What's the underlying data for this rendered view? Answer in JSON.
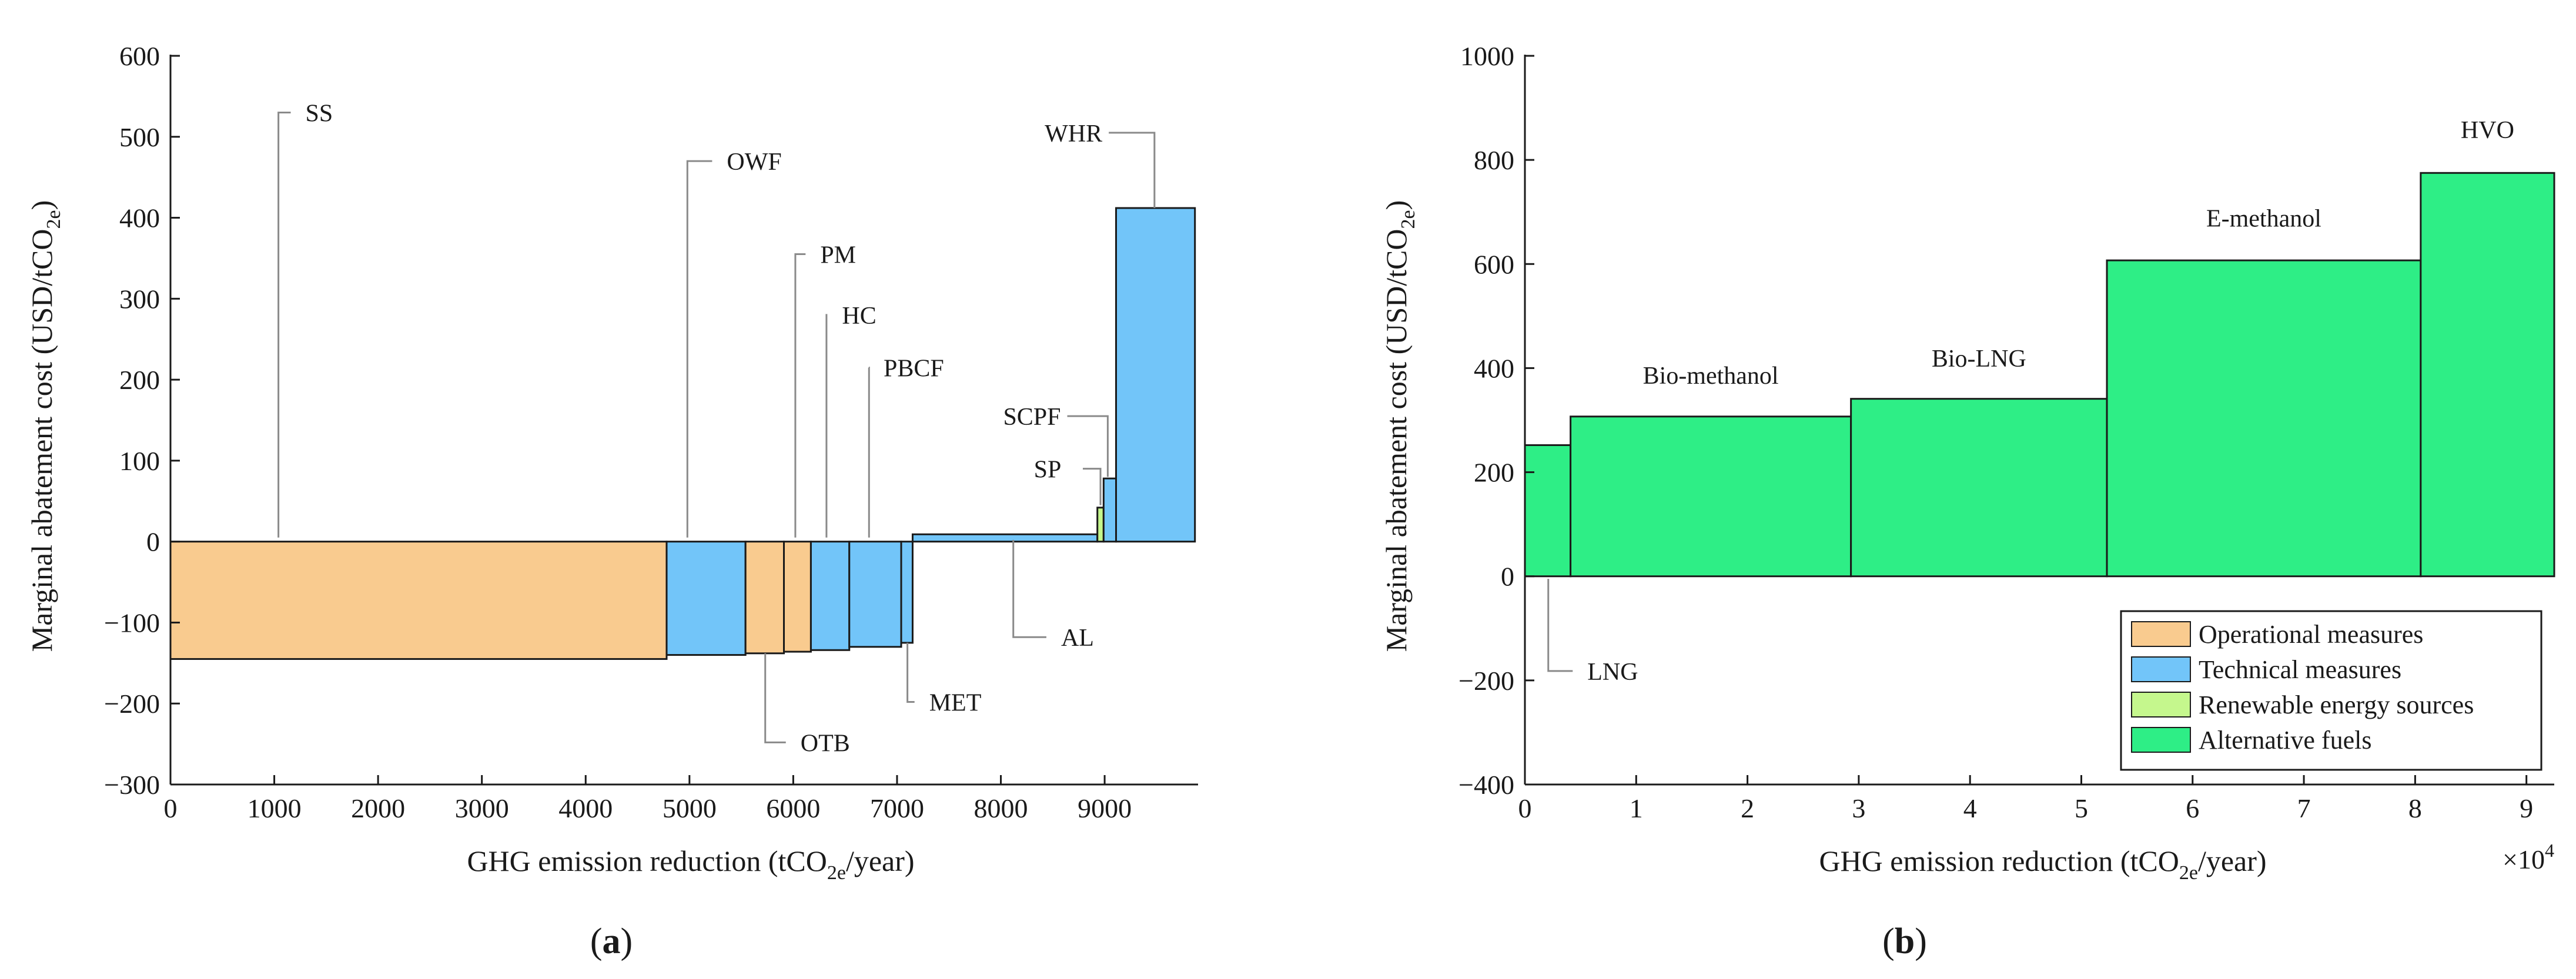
{
  "chart_data": [
    {
      "id": "a",
      "type": "bar",
      "subtype": "marginal-abatement-cost-curve",
      "panel_label": {
        "open": "(",
        "letter": "a",
        "close": ")"
      },
      "xlabel": {
        "main": "GHG emission reduction (tCO",
        "sub": "2e",
        "tail": "/year)"
      },
      "ylabel": {
        "main": "Marginal abatement cost (USD/tCO",
        "sub": "2e",
        "tail": ")"
      },
      "xlim": [
        0,
        9900
      ],
      "ylim": [
        -300,
        600
      ],
      "xticks": [
        0,
        1000,
        2000,
        3000,
        4000,
        5000,
        6000,
        7000,
        8000,
        9000
      ],
      "yticks": [
        -300,
        -200,
        -100,
        0,
        100,
        200,
        300,
        400,
        500,
        600
      ],
      "bars": [
        {
          "name": "SS",
          "category": "Operational measures",
          "x0": 0,
          "x1": 4780,
          "value": -145
        },
        {
          "name": "OWF",
          "category": "Technical measures",
          "x0": 4780,
          "x1": 5540,
          "value": -140
        },
        {
          "name": "OTB",
          "category": "Operational measures",
          "x0": 5540,
          "x1": 5910,
          "value": -138
        },
        {
          "name": "PM",
          "category": "Operational measures",
          "x0": 5910,
          "x1": 6170,
          "value": -136
        },
        {
          "name": "HC",
          "category": "Technical measures",
          "x0": 6170,
          "x1": 6540,
          "value": -134
        },
        {
          "name": "PBCF",
          "category": "Technical measures",
          "x0": 6540,
          "x1": 7040,
          "value": -130
        },
        {
          "name": "MET",
          "category": "Technical measures",
          "x0": 7040,
          "x1": 7150,
          "value": -125
        },
        {
          "name": "AL",
          "category": "Technical measures",
          "x0": 7150,
          "x1": 8930,
          "value": 9
        },
        {
          "name": "SP",
          "category": "Renewable energy sources",
          "x0": 8930,
          "x1": 8990,
          "value": 42
        },
        {
          "name": "SCPF",
          "category": "Technical measures",
          "x0": 8990,
          "x1": 9110,
          "value": 78
        },
        {
          "name": "WHR",
          "category": "Technical measures",
          "x0": 9110,
          "x1": 9870,
          "value": 412
        }
      ],
      "annotations": [
        {
          "text": "SS",
          "x": 1040,
          "y": 5,
          "ly": 530,
          "tx": 1470,
          "dir": "up"
        },
        {
          "text": "OWF",
          "x": 4980,
          "y": 5,
          "ly": 470,
          "tx": 5530,
          "dir": "up"
        },
        {
          "text": "PM",
          "x": 6020,
          "y": 5,
          "ly": 355,
          "tx": 6430,
          "dir": "up"
        },
        {
          "text": "HC",
          "x": 6320,
          "y": 5,
          "ly": 280,
          "tx": 6640,
          "dir": "up"
        },
        {
          "text": "PBCF",
          "x": 6730,
          "y": 5,
          "ly": 215,
          "tx": 7040,
          "dir": "up"
        },
        {
          "text": "SCPF",
          "x": 9030,
          "y": 80,
          "ly": 155,
          "tx": 8300,
          "dir": "left"
        },
        {
          "text": "SP",
          "x": 8960,
          "y": 45,
          "ly": 90,
          "tx": 8450,
          "dir": "left"
        },
        {
          "text": "WHR",
          "x": 9480,
          "y": 412,
          "ly": 505,
          "tx": 8700,
          "dir": "left"
        },
        {
          "text": "AL",
          "x": 8120,
          "y": 2,
          "ly": -118,
          "tx": 8750,
          "dir": "down"
        },
        {
          "text": "MET",
          "x": 7100,
          "y": -125,
          "ly": -198,
          "tx": 7480,
          "dir": "down"
        },
        {
          "text": "OTB",
          "x": 5730,
          "y": -138,
          "ly": -248,
          "tx": 6240,
          "dir": "down"
        }
      ]
    },
    {
      "id": "b",
      "type": "bar",
      "subtype": "marginal-abatement-cost-curve",
      "panel_label": {
        "open": "(",
        "letter": "b",
        "close": ")"
      },
      "xlabel": {
        "main": "GHG emission reduction (tCO",
        "sub": "2e",
        "tail": "/year)"
      },
      "ylabel": {
        "main": "Marginal abatement cost (USD/tCO",
        "sub": "2e",
        "tail": ")"
      },
      "x_multiplier": {
        "base": "×10",
        "exp": "4"
      },
      "xlim": [
        0,
        9.25
      ],
      "ylim": [
        -400,
        1000
      ],
      "xticks": [
        0,
        1,
        2,
        3,
        4,
        5,
        6,
        7,
        8,
        9
      ],
      "yticks": [
        -400,
        -200,
        0,
        200,
        400,
        600,
        800,
        1000
      ],
      "bars": [
        {
          "name": "LNG",
          "category": "Alternative fuels",
          "x0": 0,
          "x1": 0.41,
          "value": 252
        },
        {
          "name": "Bio-methanol",
          "category": "Alternative fuels",
          "x0": 0.41,
          "x1": 2.93,
          "value": 307
        },
        {
          "name": "Bio-LNG",
          "category": "Alternative fuels",
          "x0": 2.93,
          "x1": 5.23,
          "value": 341
        },
        {
          "name": "E-methanol",
          "category": "Alternative fuels",
          "x0": 5.23,
          "x1": 8.05,
          "value": 607
        },
        {
          "name": "HVO",
          "category": "Alternative fuels",
          "x0": 8.05,
          "x1": 9.25,
          "value": 775
        }
      ],
      "bar_text_labels": [
        {
          "text": "Bio-methanol",
          "x": 1.67,
          "y": 370
        },
        {
          "text": "Bio-LNG",
          "x": 4.08,
          "y": 403
        },
        {
          "text": "E-methanol",
          "x": 6.64,
          "y": 672
        },
        {
          "text": "HVO",
          "x": 8.65,
          "y": 842
        }
      ],
      "annotations": [
        {
          "text": "LNG",
          "x": 0.21,
          "y": -5,
          "ly": -182,
          "tx": 0.72,
          "dir": "down"
        }
      ]
    }
  ],
  "legend": {
    "position": "bottom-right of panel b",
    "items": [
      {
        "label": "Operational measures",
        "color": "#F9CB8F"
      },
      {
        "label": "Technical measures",
        "color": "#72C5F9"
      },
      {
        "label": "Renewable energy sources",
        "color": "#C5F78D"
      },
      {
        "label": "Alternative fuels",
        "color": "#2EEE86"
      }
    ]
  },
  "colors": {
    "Operational measures": "#F9CB8F",
    "Technical measures": "#72C5F9",
    "Renewable energy sources": "#C5F78D",
    "Alternative fuels": "#2EEE86",
    "axis": "#1a1a1a",
    "leader": "#8a8a8a"
  }
}
